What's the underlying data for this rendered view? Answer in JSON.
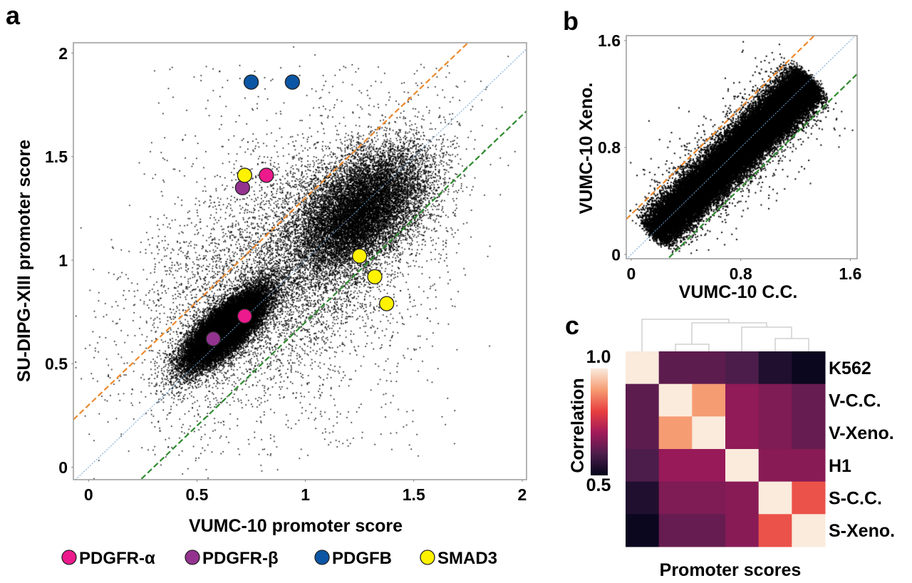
{
  "chart_data": [
    {
      "panel_label": "a",
      "type": "scatter",
      "xlabel": "VUMC-10 promoter score",
      "ylabel": "SU-DIPG-XIII promoter score",
      "xlim": [
        -0.07,
        2.02
      ],
      "ylim": [
        -0.06,
        2.05
      ],
      "xticks": [
        0,
        0.5,
        1,
        1.5,
        2
      ],
      "xtick_labels": [
        "0",
        "0.5",
        "1",
        "1.5",
        "2"
      ],
      "yticks": [
        0,
        0.5,
        1,
        1.5,
        2
      ],
      "ytick_labels": [
        "0",
        "0.5",
        "1",
        "1.5",
        "2"
      ],
      "grid": false,
      "background_points": "dense black cloud of promoters (two clusters around ~0.6 and ~1.25 along the diagonal)",
      "reference_lines": [
        {
          "slope": 1,
          "intercept": 0,
          "color": "#6fa3d6",
          "style": "dotted"
        },
        {
          "slope": 1,
          "intercept": 0.3,
          "color": "#ee8a2e",
          "style": "dashed"
        },
        {
          "slope": 1,
          "intercept": -0.3,
          "color": "#2e8b2e",
          "style": "dashed"
        }
      ],
      "series": [
        {
          "name": "PDGFR-α",
          "color": "#ec1a8c",
          "points": [
            [
              0.82,
              1.41
            ],
            [
              0.72,
              0.73
            ]
          ]
        },
        {
          "name": "PDGFR-β",
          "color": "#93338f",
          "points": [
            [
              0.71,
              1.35
            ],
            [
              0.575,
              0.62
            ]
          ]
        },
        {
          "name": "PDGFB",
          "color": "#0b56a4",
          "points": [
            [
              0.75,
              1.86
            ],
            [
              0.94,
              1.86
            ]
          ]
        },
        {
          "name": "SMAD3",
          "color": "#fff200",
          "points": [
            [
              0.72,
              1.41
            ],
            [
              1.25,
              1.02
            ],
            [
              1.32,
              0.92
            ],
            [
              1.375,
              0.79
            ]
          ]
        }
      ],
      "legend_position": "bottom"
    },
    {
      "panel_label": "b",
      "type": "scatter",
      "xlabel": "VUMC-10 C.C.",
      "ylabel": "VUMC-10 Xeno.",
      "xlim": [
        -0.036,
        1.65
      ],
      "ylim": [
        -0.032,
        1.637
      ],
      "xticks": [
        0,
        0.8,
        1.6
      ],
      "xtick_labels": [
        "0",
        "0.8",
        "1.6"
      ],
      "yticks": [
        0,
        0.8,
        1.6
      ],
      "ytick_labels": [
        "0",
        "0.8",
        "1.6"
      ],
      "grid": false,
      "background_points": "dense black cloud tightly along the diagonal",
      "reference_lines": [
        {
          "slope": 1,
          "intercept": 0,
          "color": "#6fa3d6",
          "style": "dotted"
        },
        {
          "slope": 1,
          "intercept": 0.3,
          "color": "#ee8a2e",
          "style": "dashed"
        },
        {
          "slope": 1,
          "intercept": -0.3,
          "color": "#2e8b2e",
          "style": "dashed"
        }
      ]
    },
    {
      "panel_label": "c",
      "type": "heatmap",
      "xlabel": "Promoter scores",
      "colorbar_label": "Correlation",
      "colorbar_range": [
        0.5,
        1.0
      ],
      "colorbar_tick_labels": [
        "1.0",
        "0.5"
      ],
      "colormap": "rocket",
      "row_labels": [
        "K562",
        "V-C.C.",
        "V-Xeno.",
        "H1",
        "S-C.C.",
        "S-Xeno."
      ],
      "values": [
        [
          1.0,
          0.62,
          0.62,
          0.6,
          0.54,
          0.51
        ],
        [
          0.62,
          1.0,
          0.9,
          0.68,
          0.66,
          0.63
        ],
        [
          0.62,
          0.9,
          1.0,
          0.68,
          0.66,
          0.63
        ],
        [
          0.6,
          0.69,
          0.69,
          1.0,
          0.67,
          0.67
        ],
        [
          0.54,
          0.66,
          0.66,
          0.67,
          1.0,
          0.82
        ],
        [
          0.51,
          0.63,
          0.63,
          0.67,
          0.82,
          1.0
        ]
      ],
      "dendrogram": "top"
    }
  ]
}
